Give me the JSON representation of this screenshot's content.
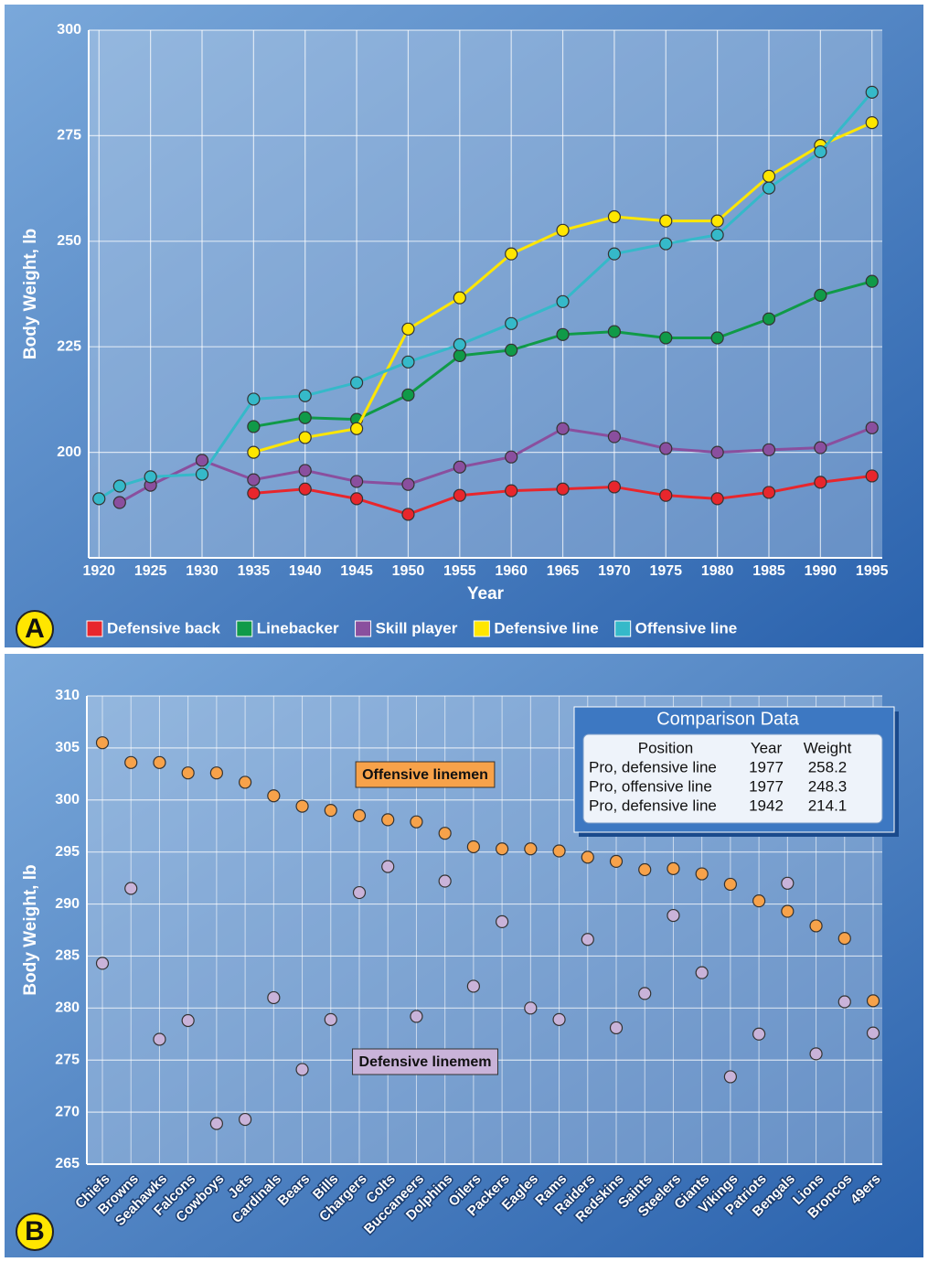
{
  "chart_data": [
    {
      "type": "line",
      "panel": "A",
      "xlabel": "Year",
      "ylabel": "Body Weight, lb",
      "grid": true,
      "legend": "bottom",
      "x": [
        1920,
        1922,
        1925,
        1930,
        1935,
        1940,
        1945,
        1950,
        1955,
        1960,
        1965,
        1970,
        1975,
        1980,
        1985,
        1990,
        1995
      ],
      "xlim": [
        1919,
        1996
      ],
      "xticks": [
        1920,
        1925,
        1930,
        1935,
        1940,
        1945,
        1950,
        1955,
        1960,
        1965,
        1970,
        1975,
        1980,
        1985,
        1990,
        1995
      ],
      "ylim": [
        175,
        300
      ],
      "yticks": [
        200,
        225,
        250,
        275,
        300
      ],
      "series": [
        {
          "name": "Defensive back",
          "color": "#e8262c",
          "values": [
            null,
            null,
            null,
            null,
            190.3,
            191.3,
            189.0,
            185.3,
            189.8,
            190.9,
            191.3,
            191.8,
            189.8,
            189.0,
            190.5,
            192.9,
            194.4
          ]
        },
        {
          "name": "Linebacker",
          "color": "#109a48",
          "values": [
            null,
            null,
            null,
            null,
            206.1,
            208.2,
            207.8,
            213.6,
            222.9,
            224.2,
            227.9,
            228.6,
            227.1,
            227.1,
            231.6,
            237.2,
            240.5
          ]
        },
        {
          "name": "Skill player",
          "color": "#8a4f9e",
          "values": [
            null,
            188.1,
            192.2,
            198.1,
            193.5,
            195.7,
            193.1,
            192.4,
            196.5,
            198.9,
            205.6,
            203.7,
            200.9,
            200.0,
            200.6,
            201.1,
            205.8
          ]
        },
        {
          "name": "Defensive line",
          "color": "#ffe600",
          "values": [
            null,
            null,
            null,
            null,
            200.0,
            203.5,
            205.6,
            229.2,
            236.6,
            247.0,
            252.6,
            255.8,
            254.8,
            254.8,
            265.4,
            272.7,
            278.1
          ]
        },
        {
          "name": "Offensive line",
          "color": "#35b9c9",
          "values": [
            189.0,
            192.0,
            194.2,
            194.8,
            212.6,
            213.4,
            216.5,
            221.4,
            225.5,
            230.5,
            235.7,
            247.0,
            249.4,
            251.5,
            262.6,
            271.2,
            285.3
          ]
        }
      ]
    },
    {
      "type": "dot",
      "panel": "B",
      "ylabel": "Body Weight, lb",
      "grid": true,
      "categories": [
        "Chiefs",
        "Browns",
        "Seahawks",
        "Falcons",
        "Cowboys",
        "Jets",
        "Cardinals",
        "Bears",
        "Bills",
        "Chargers",
        "Colts",
        "Buccaneers",
        "Dolphins",
        "Oilers",
        "Packers",
        "Eagles",
        "Rams",
        "Raiders",
        "Redskins",
        "Saints",
        "Steelers",
        "Giants",
        "Vikings",
        "Patriots",
        "Bengals",
        "Lions",
        "Broncos",
        "49ers"
      ],
      "ylim": [
        265,
        310
      ],
      "yticks": [
        265,
        270,
        275,
        280,
        285,
        290,
        295,
        300,
        305,
        310
      ],
      "series": [
        {
          "name": "Offensive linemen",
          "color": "#f7a24a",
          "values": [
            305.5,
            303.6,
            303.6,
            302.6,
            302.6,
            301.7,
            300.4,
            299.4,
            299.0,
            298.5,
            298.1,
            297.9,
            296.8,
            295.5,
            295.3,
            295.3,
            295.1,
            294.5,
            294.1,
            293.3,
            293.4,
            292.9,
            291.9,
            290.3,
            289.3,
            287.9,
            286.7,
            280.7
          ]
        },
        {
          "name": "Defensive linemem",
          "color": "#c9b3d9",
          "values": [
            284.3,
            291.5,
            277.0,
            278.8,
            268.9,
            269.3,
            281.0,
            274.1,
            278.9,
            291.1,
            293.6,
            279.2,
            292.2,
            282.1,
            288.3,
            280.0,
            278.9,
            286.6,
            278.1,
            281.4,
            288.9,
            283.4,
            273.4,
            277.5,
            292.0,
            275.6,
            280.6,
            277.6
          ]
        }
      ],
      "table": {
        "title": "Comparison Data",
        "columns": [
          "Position",
          "Year",
          "Weight"
        ],
        "rows": [
          [
            "Pro, defensive line",
            1977,
            258.2
          ],
          [
            "Pro, offensive line",
            1977,
            248.3
          ],
          [
            "Pro, defensive line",
            1942,
            214.1
          ]
        ]
      }
    }
  ]
}
